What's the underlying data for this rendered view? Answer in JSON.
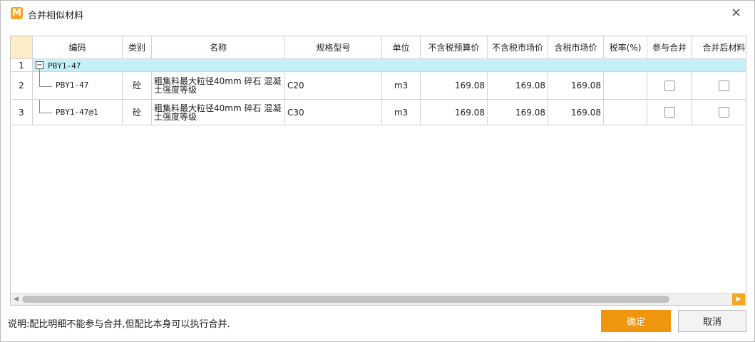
{
  "dialog": {
    "title": "合并相似材料",
    "table": {
      "columns": {
        "code": "编码",
        "category": "类别",
        "name": "名称",
        "spec": "规格型号",
        "unit": "单位",
        "budget_price": "不含税预算价",
        "market_price": "不含税市场价",
        "tax_market_price": "含税市场价",
        "tax_rate": "税率(%)",
        "merge": "参与合并",
        "merged_material": "合并后材料"
      },
      "rows": [
        {
          "num": 1,
          "code": "PBY1-47"
        },
        {
          "num": 2,
          "code": "PBY1-47",
          "category": "砼",
          "name": "粗集料最大粒径40mm 碎石 混凝土强度等级",
          "spec": "C20",
          "unit": "m3",
          "budget_price": 169.08,
          "market_price": 169.08,
          "tax_market_price": 169.08
        },
        {
          "num": 3,
          "code": "PBY1-47@1",
          "category": "砼",
          "name": "粗集料最大粒径40mm 碎石 混凝土强度等级",
          "spec": "C30",
          "unit": "m3",
          "budget_price": 169.08,
          "market_price": 169.08,
          "tax_market_price": 169.08
        }
      ]
    },
    "note": "说明:配比明细不能参与合并,但配比本身可以执行合并.",
    "buttons": {
      "ok": "确定",
      "cancel": "取消"
    }
  }
}
